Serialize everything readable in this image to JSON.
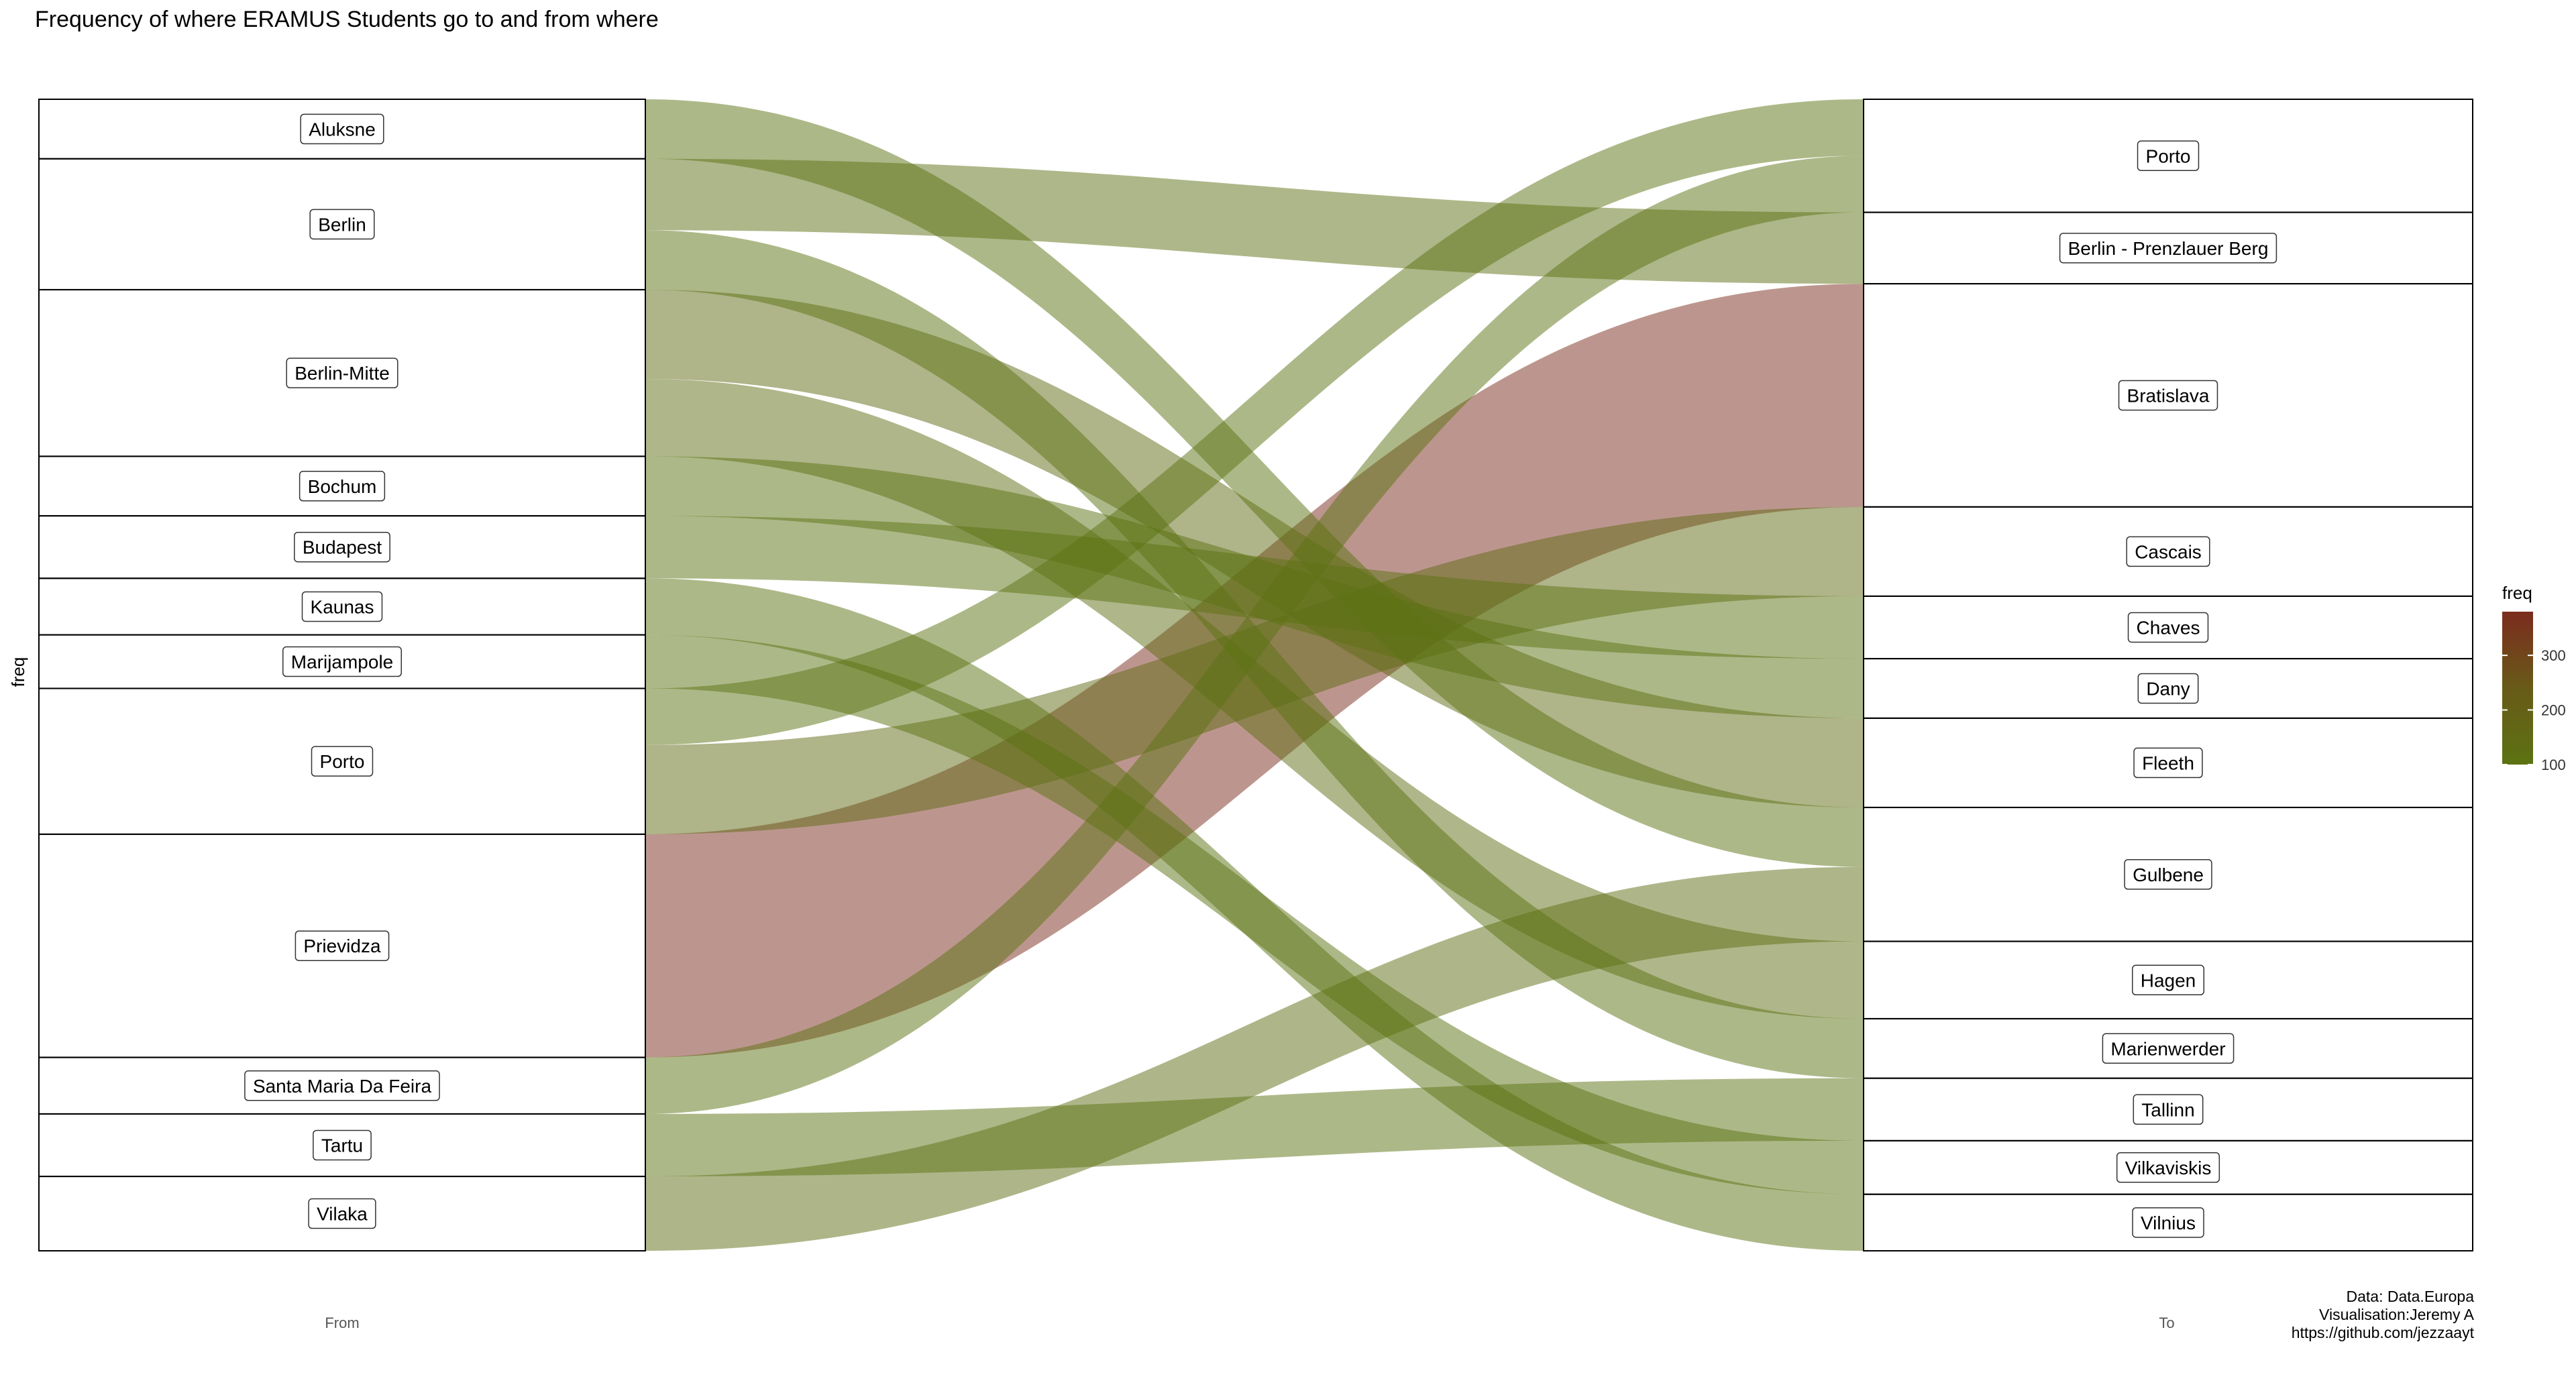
{
  "chart_data": {
    "type": "alluvial",
    "title": "Frequency of where ERAMUS Students go to and from where",
    "ylabel": "freq",
    "axis_labels": [
      "From",
      "To"
    ],
    "legend": {
      "title": "freq",
      "ticks": [
        100,
        200,
        300
      ],
      "range": [
        100,
        380
      ],
      "colors": {
        "low": "#5c7212",
        "mid": "#685a18",
        "high": "#7b2c1e"
      },
      "placement": "right"
    },
    "from_nodes": [
      "Aluksne",
      "Berlin",
      "Berlin-Mitte",
      "Bochum",
      "Budapest",
      "Kaunas",
      "Marijampole",
      "Porto",
      "Prievidza",
      "Santa Maria Da Feira",
      "Tartu",
      "Vilaka"
    ],
    "to_nodes": [
      "Porto",
      "Berlin - Prenzlauer Berg",
      "Bratislava",
      "Cascais",
      "Chaves",
      "Dany",
      "Fleeth",
      "Gulbene",
      "Hagen",
      "Marienwerder",
      "Tallinn",
      "Vilkaviskis",
      "Vilnius"
    ],
    "flows": [
      {
        "from": "Aluksne",
        "to": "Gulbene",
        "freq": 100
      },
      {
        "from": "Berlin",
        "to": "Berlin - Prenzlauer Berg",
        "freq": 120
      },
      {
        "from": "Berlin",
        "to": "Marienwerder",
        "freq": 100
      },
      {
        "from": "Berlin-Mitte",
        "to": "Fleeth",
        "freq": 150
      },
      {
        "from": "Berlin-Mitte",
        "to": "Hagen",
        "freq": 130
      },
      {
        "from": "Bochum",
        "to": "Dany",
        "freq": 100
      },
      {
        "from": "Budapest",
        "to": "Chaves",
        "freq": 105
      },
      {
        "from": "Kaunas",
        "to": "Vilnius",
        "freq": 95
      },
      {
        "from": "Marijampole",
        "to": "Vilkaviskis",
        "freq": 90
      },
      {
        "from": "Porto",
        "to": "Porto",
        "freq": 95
      },
      {
        "from": "Porto",
        "to": "Cascais",
        "freq": 150
      },
      {
        "from": "Prievidza",
        "to": "Bratislava",
        "freq": 375
      },
      {
        "from": "Santa Maria Da Feira",
        "to": "Porto",
        "freq": 95
      },
      {
        "from": "Tartu",
        "to": "Tallinn",
        "freq": 105
      },
      {
        "from": "Vilaka",
        "to": "Gulbene",
        "freq": 125
      }
    ],
    "caption": [
      "Data: Data.Europa",
      "Visualisation:Jeremy A",
      "https://github.com/jezzaayt"
    ]
  }
}
